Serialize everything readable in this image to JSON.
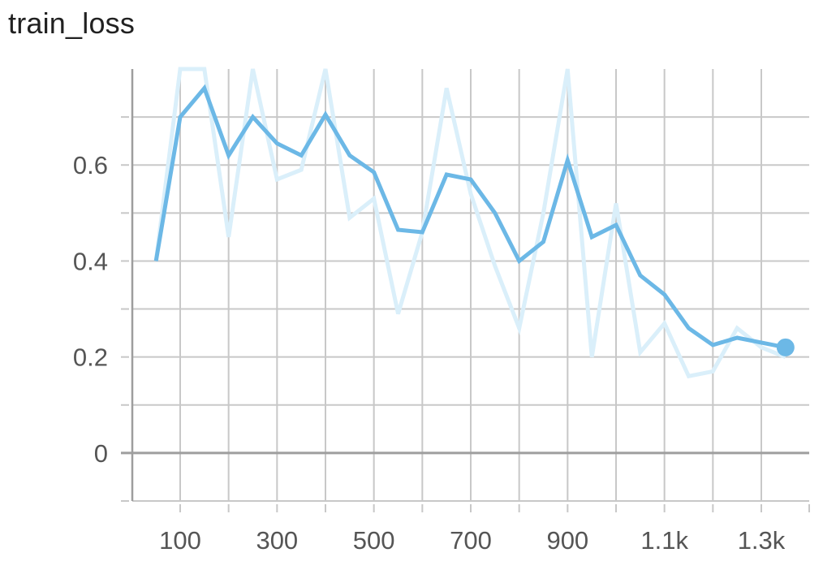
{
  "chart_data": {
    "type": "line",
    "title": "train_loss",
    "xlabel": "",
    "ylabel": "",
    "x_ticks": [
      {
        "value": 100,
        "label": "100"
      },
      {
        "value": 300,
        "label": "300"
      },
      {
        "value": 500,
        "label": "500"
      },
      {
        "value": 700,
        "label": "700"
      },
      {
        "value": 900,
        "label": "900"
      },
      {
        "value": 1100,
        "label": "1.1k"
      },
      {
        "value": 1300,
        "label": "1.3k"
      }
    ],
    "x_minor_ticks": [
      200,
      400,
      600,
      800,
      1000,
      1200
    ],
    "y_ticks": [
      {
        "value": 0,
        "label": "0"
      },
      {
        "value": 0.2,
        "label": "0.2"
      },
      {
        "value": 0.4,
        "label": "0.4"
      },
      {
        "value": 0.6,
        "label": "0.6"
      }
    ],
    "y_minor_ticks": [
      -0.1,
      0.1,
      0.3,
      0.5,
      0.7
    ],
    "xlim": [
      -95,
      2700
    ],
    "ylim": [
      -0.1,
      0.8
    ],
    "grid": true,
    "colors": {
      "smoothed": "#6cb8e6",
      "raw": "#daeffa",
      "grid": "#c8c8c8",
      "zero_line": "#9e9e9e",
      "axis": "#9e9e9e"
    },
    "series": [
      {
        "role": "raw",
        "x": [
          50,
          100,
          150,
          200,
          250,
          300,
          350,
          400,
          450,
          500,
          550,
          600,
          650,
          700,
          750,
          800,
          850,
          900,
          950,
          1000,
          1050,
          1100,
          1150,
          1200,
          1250,
          1300,
          1350
        ],
        "y": [
          0.4,
          0.85,
          0.82,
          0.45,
          0.8,
          0.57,
          0.59,
          0.82,
          0.49,
          0.53,
          0.29,
          0.46,
          0.76,
          0.54,
          0.39,
          0.26,
          0.5,
          0.83,
          0.2,
          0.52,
          0.21,
          0.27,
          0.16,
          0.17,
          0.26,
          0.22,
          0.2
        ]
      },
      {
        "role": "smoothed",
        "x": [
          50,
          100,
          150,
          200,
          250,
          300,
          350,
          400,
          450,
          500,
          550,
          600,
          650,
          700,
          750,
          800,
          850,
          900,
          950,
          1000,
          1050,
          1100,
          1150,
          1200,
          1250,
          1300,
          1350
        ],
        "y": [
          0.4,
          0.7,
          0.76,
          0.62,
          0.7,
          0.645,
          0.62,
          0.705,
          0.62,
          0.585,
          0.465,
          0.46,
          0.58,
          0.57,
          0.5,
          0.4,
          0.44,
          0.61,
          0.45,
          0.475,
          0.37,
          0.33,
          0.26,
          0.225,
          0.24,
          0.23,
          0.22
        ]
      }
    ]
  }
}
